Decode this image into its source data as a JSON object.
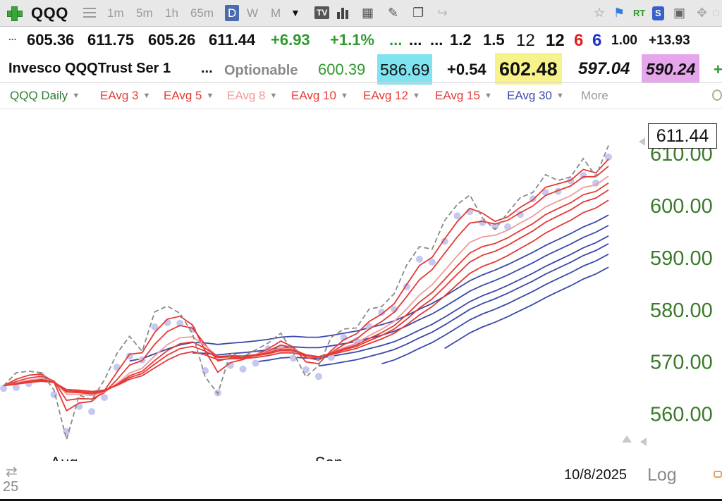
{
  "toolbar": {
    "symbol": "QQQ",
    "periods": [
      "1m",
      "5m",
      "1h",
      "65m",
      "D",
      "W",
      "M"
    ],
    "active_period": "D",
    "tv_label": "TV",
    "rt_label": "RT",
    "s_label": "S"
  },
  "quote_row1": {
    "dots": "...",
    "open": "605.36",
    "high": "611.75",
    "low": "605.26",
    "close": "611.44",
    "change": "+6.93",
    "change_pct": "+1.1%",
    "ellipsis1": "...",
    "ellipsis2": "...",
    "ellipsis3": "...",
    "v1": "1.2",
    "v2": "1.5",
    "v3": "12",
    "v4": "12",
    "v5": "6",
    "v6": "6",
    "v7": "1.00",
    "v8": "+13.93"
  },
  "quote_row2": {
    "name": "Invesco QQQTrust Ser 1",
    "ellipsis": "...",
    "optionable": "Optionable",
    "val1": "600.39",
    "val2": "586.69",
    "val3": "+0.54",
    "val4": "602.48",
    "val5": "597.04",
    "val6": "590.24"
  },
  "legend": {
    "items": [
      {
        "label": "QQQ Daily",
        "color": "#2e7d32"
      },
      {
        "label": "EAvg 3",
        "color": "#e53935"
      },
      {
        "label": "EAvg 5",
        "color": "#e53935"
      },
      {
        "label": "EAvg 8",
        "color": "#ef9a9a"
      },
      {
        "label": "EAvg 10",
        "color": "#e53935"
      },
      {
        "label": "EAvg 12",
        "color": "#e53935"
      },
      {
        "label": "EAvg 15",
        "color": "#e53935"
      },
      {
        "label": "EAvg 30",
        "color": "#3949ab"
      }
    ],
    "more_label": "More"
  },
  "chart_data": {
    "type": "line",
    "symbol": "QQQ",
    "period": "Daily",
    "x_labels": [
      "Aug",
      "Sep"
    ],
    "date": "10/8/2025",
    "year_fragment": "25",
    "scale_label": "Log",
    "y_axis_ticks": [
      "560.00",
      "570.00",
      "580.00",
      "590.00",
      "600.00",
      "610.00"
    ],
    "ylim": [
      550.9,
      618.5
    ],
    "last_price": "611.44",
    "close_series": [
      565.3,
      567.8,
      568.1,
      567.8,
      564.5,
      555.0,
      563.5,
      562.6,
      566.4,
      571.5,
      574.8,
      571.9,
      579.5,
      580.6,
      579.2,
      575.3,
      567.0,
      563.8,
      571.6,
      570.9,
      572.2,
      573.5,
      575.4,
      571.6,
      567.0,
      569.2,
      574.6,
      576.2,
      576.4,
      580.0,
      580.5,
      583.0,
      588.5,
      592.0,
      591.5,
      597.0,
      600.1,
      601.9,
      597.5,
      595.3,
      598.5,
      601.4,
      602.4,
      605.8,
      604.7,
      605.4,
      608.9,
      605.5,
      611.4
    ],
    "series_colors": {
      "close": "#8a8a8a",
      "short_term_emas": "#e53935",
      "ema_8": "#ef9a9a",
      "long_term_emas": "#3949ab",
      "dots": "#c5c8ef"
    },
    "red_ema_periods": [
      3,
      5,
      8,
      10,
      12,
      15
    ],
    "blue_ema_offsets": [
      5.5,
      3.5,
      1.5,
      0.0,
      -2.0,
      -4.5
    ],
    "grid": false,
    "legend_position": "top-left"
  }
}
